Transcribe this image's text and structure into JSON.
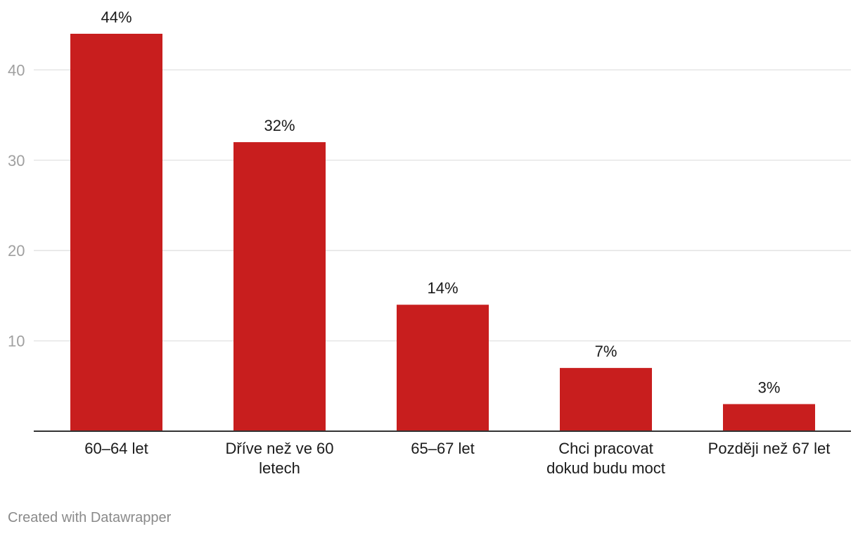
{
  "chart_data": {
    "type": "bar",
    "categories": [
      [
        "60–64 let"
      ],
      [
        "Dříve než ve 60",
        "letech"
      ],
      [
        "65–67 let"
      ],
      [
        "Chci pracovat",
        "dokud budu moct"
      ],
      [
        "Později než 67 let"
      ]
    ],
    "values": [
      44,
      32,
      14,
      7,
      3
    ],
    "value_labels": [
      "44%",
      "32%",
      "14%",
      "7%",
      "3%"
    ],
    "yticks": [
      "10",
      "20",
      "30",
      "40"
    ],
    "ytick_values": [
      10,
      20,
      30,
      40
    ],
    "ylim": [
      0,
      44
    ],
    "grid": true,
    "bar_color": "#c81e1e"
  },
  "footer": {
    "credit": "Created with Datawrapper"
  }
}
